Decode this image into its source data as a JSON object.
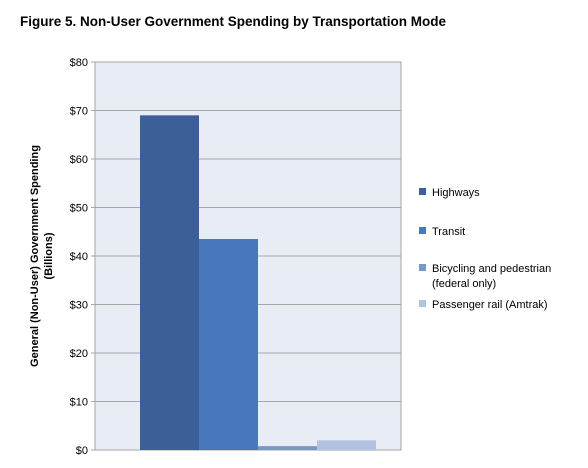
{
  "chart_data": {
    "type": "bar",
    "title": "Figure 5. Non-User Government Spending by Transportation Mode",
    "ylabel": [
      "General (Non-User) Government Spending",
      "(Billions)"
    ],
    "xlabel": "",
    "ylim": [
      0,
      80
    ],
    "yticks": [
      0,
      10,
      20,
      30,
      40,
      50,
      60,
      70,
      80
    ],
    "ytick_prefix": "$",
    "grid": true,
    "legend_position": "right",
    "series": [
      {
        "name": "Highways",
        "value": 69,
        "color": "#3c5f99"
      },
      {
        "name": "Transit",
        "value": 43.5,
        "color": "#4877bc"
      },
      {
        "name_lines": [
          "Bicycling and pedestrian",
          "(federal only)"
        ],
        "name": "Bicycling and pedestrian (federal only)",
        "value": 0.8,
        "color": "#7898c8"
      },
      {
        "name": "Passenger rail (Amtrak)",
        "value": 2,
        "color": "#b2c3e2"
      }
    ],
    "colors": {
      "plot_bg": "#e7ecf5",
      "grid": "#a6a6a6"
    }
  }
}
